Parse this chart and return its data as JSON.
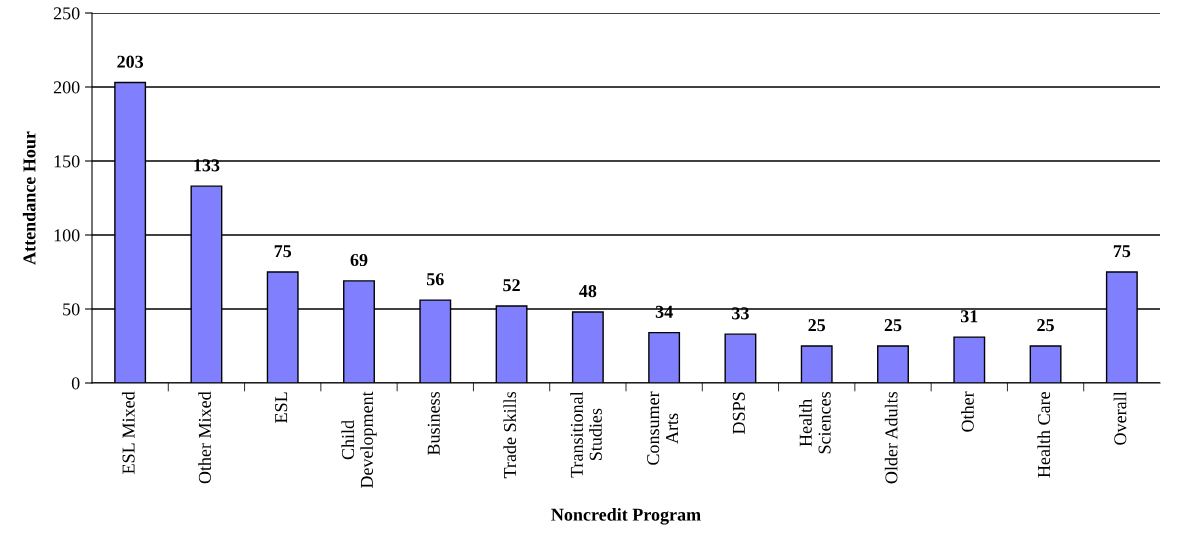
{
  "chart_data": {
    "type": "bar",
    "xlabel": "Noncredit Program",
    "ylabel": "Attendance Hour",
    "categories": [
      "ESL Mixed",
      "Other Mixed",
      "ESL",
      "Child\nDevelopment",
      "Business",
      "Trade Skills",
      "Transitional\nStudies",
      "Consumer\nArts",
      "DSPS",
      "Health\nSciences",
      "Older Adults",
      "Other",
      "Health Care",
      "Overall"
    ],
    "values": [
      203,
      133,
      75,
      69,
      56,
      52,
      48,
      34,
      33,
      25,
      25,
      31,
      25,
      75
    ],
    "color": "#8080ff",
    "ylim": [
      0,
      250
    ],
    "yticks": [
      0,
      50,
      100,
      150,
      200,
      250
    ],
    "grid": "y",
    "data_labels": true
  }
}
